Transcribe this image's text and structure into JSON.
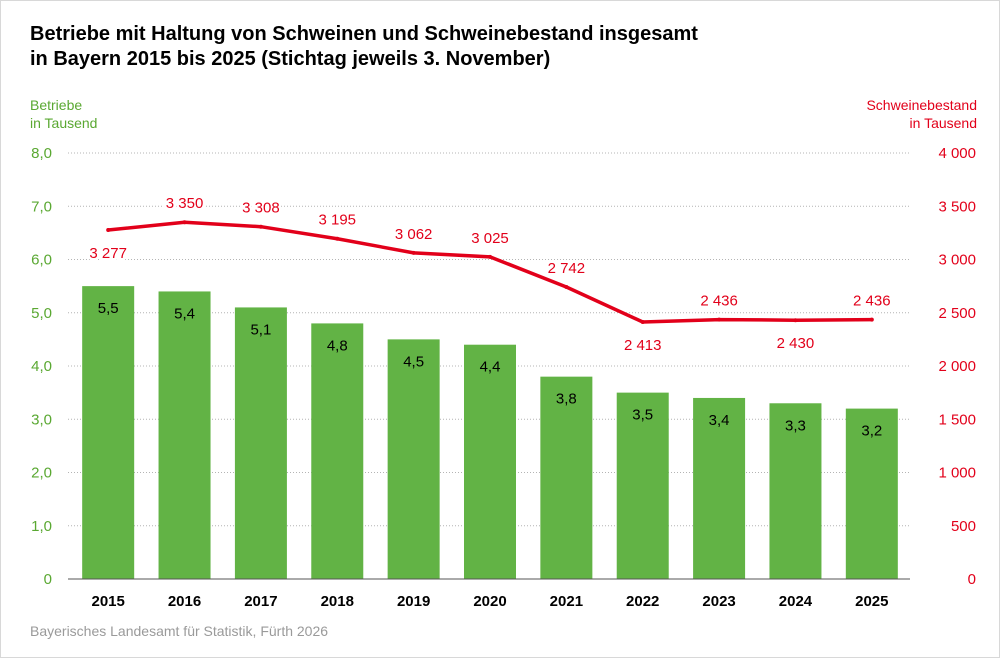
{
  "title": {
    "line1": "Betriebe mit Haltung von Schweinen und Schweinebestand insgesamt",
    "line2": "in Bayern 2015 bis 2025 (Stichtag jeweils 3. November)"
  },
  "source": "Bayerisches Landesamt für Statistik, Fürth 2026",
  "colors": {
    "bar": "#62b345",
    "line": "#e2001a",
    "left_axis": "#5aa832",
    "right_axis": "#e2001a",
    "grid": "#b4b4b4"
  },
  "chart_data": {
    "type": "bar",
    "categories": [
      "2015",
      "2016",
      "2017",
      "2018",
      "2019",
      "2020",
      "2021",
      "2022",
      "2023",
      "2024",
      "2025"
    ],
    "y_left": {
      "label_line1": "Betriebe",
      "label_line2": "in Tausend",
      "range": [
        0,
        8
      ],
      "ticks": [
        0,
        1,
        2,
        3,
        4,
        5,
        6,
        7,
        8
      ],
      "tick_labels": [
        "0",
        "1,0",
        "2,0",
        "3,0",
        "4,0",
        "5,0",
        "6,0",
        "7,0",
        "8,0"
      ]
    },
    "y_right": {
      "label_line1": "Schweinebestand",
      "label_line2": "in Tausend",
      "range": [
        0,
        4000
      ],
      "ticks": [
        0,
        500,
        1000,
        1500,
        2000,
        2500,
        3000,
        3500,
        4000
      ],
      "tick_labels": [
        "0",
        "500",
        "1 000",
        "1 500",
        "2 000",
        "2 500",
        "3 000",
        "3 500",
        "4 000"
      ]
    },
    "grid": true,
    "series": [
      {
        "type": "bar",
        "axis": "left",
        "values": [
          5.5,
          5.4,
          5.1,
          4.8,
          4.5,
          4.4,
          3.8,
          3.5,
          3.4,
          3.3,
          3.2
        ],
        "labels": [
          "5,5",
          "5,4",
          "5,1",
          "4,8",
          "4,5",
          "4,4",
          "3,8",
          "3,5",
          "3,4",
          "3,3",
          "3,2"
        ]
      },
      {
        "type": "line",
        "axis": "right",
        "values": [
          3277,
          3350,
          3308,
          3195,
          3062,
          3025,
          2742,
          2413,
          2436,
          2430,
          2436
        ],
        "labels": [
          "3 277",
          "3 350",
          "3 308",
          "3 195",
          "3 062",
          "3 025",
          "2 742",
          "2 413",
          "2 436",
          "2 430",
          "2 436"
        ]
      }
    ]
  }
}
